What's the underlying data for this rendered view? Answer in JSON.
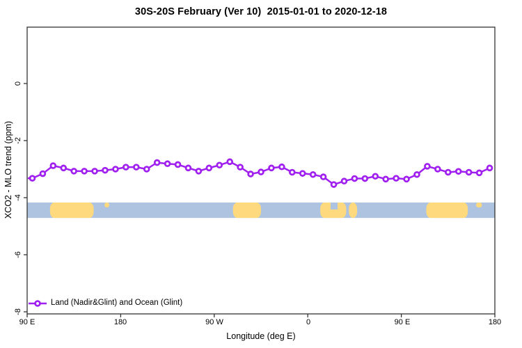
{
  "chart_data": {
    "type": "line",
    "title": "30S-20S February (Ver 10)  2015-01-01 to 2020-12-18",
    "xlabel": "Longitude (deg E)",
    "ylabel": "XCO2 - MLO trend (ppm)",
    "xlim": [
      90,
      540
    ],
    "ylim": [
      -8.2,
      2
    ],
    "grid": "off",
    "x_tick_deg": [
      90,
      180,
      270,
      360,
      450,
      540
    ],
    "x_tick_labels": [
      "90 E",
      "180",
      "90 W",
      "0",
      "90 E",
      "180"
    ],
    "y_tick_values": [
      0,
      -2,
      -4,
      -6,
      -8
    ],
    "y_tick_labels": [
      "0",
      "-2",
      "-4",
      "-6",
      "-8"
    ],
    "series": [
      {
        "name": "Land (Nadir&Glint) and Ocean (Glint)",
        "color": "#A020F0",
        "marker": "open-circle",
        "x": [
          95,
          105,
          115,
          125,
          135,
          145,
          155,
          165,
          175,
          185,
          195,
          205,
          215,
          225,
          235,
          245,
          255,
          265,
          275,
          285,
          295,
          305,
          315,
          325,
          335,
          345,
          355,
          365,
          375,
          385,
          395,
          405,
          415,
          425,
          435,
          445,
          455,
          465,
          475,
          485,
          495,
          505,
          515,
          525,
          535
        ],
        "y": [
          -3.32,
          -3.16,
          -2.88,
          -2.96,
          -3.07,
          -3.07,
          -3.07,
          -3.04,
          -3.0,
          -2.93,
          -2.93,
          -3.0,
          -2.77,
          -2.81,
          -2.84,
          -2.96,
          -3.07,
          -2.96,
          -2.86,
          -2.74,
          -2.93,
          -3.17,
          -3.1,
          -2.96,
          -2.92,
          -3.11,
          -3.15,
          -3.19,
          -3.27,
          -3.54,
          -3.42,
          -3.33,
          -3.33,
          -3.25,
          -3.35,
          -3.32,
          -3.35,
          -3.19,
          -2.9,
          -3.0,
          -3.11,
          -3.08,
          -3.11,
          -3.13,
          -2.96
        ]
      }
    ],
    "map_band": {
      "y_top_ppm": -4.17,
      "y_bottom_ppm": -4.71,
      "ocean_color": "#AEC3DF",
      "land_color": "#FFD97E",
      "land_segments_deg": [
        {
          "from": 112,
          "to": 154
        },
        {
          "from": 288,
          "to": 315
        },
        {
          "from": 372,
          "to": 397
        },
        {
          "from": 399.5,
          "to": 407.5
        },
        {
          "from": 474,
          "to": 514
        }
      ],
      "land_specks_deg": [
        {
          "from": 164.5,
          "to": 169
        },
        {
          "from": 522,
          "to": 527.5
        }
      ],
      "ocean_notches_deg": [
        {
          "from": 382,
          "to": 388.7
        }
      ]
    },
    "legend": {
      "label": "Land (Nadir&Glint) and Ocean (Glint)",
      "position": "bottom-left"
    },
    "axis_color": "#333333"
  }
}
